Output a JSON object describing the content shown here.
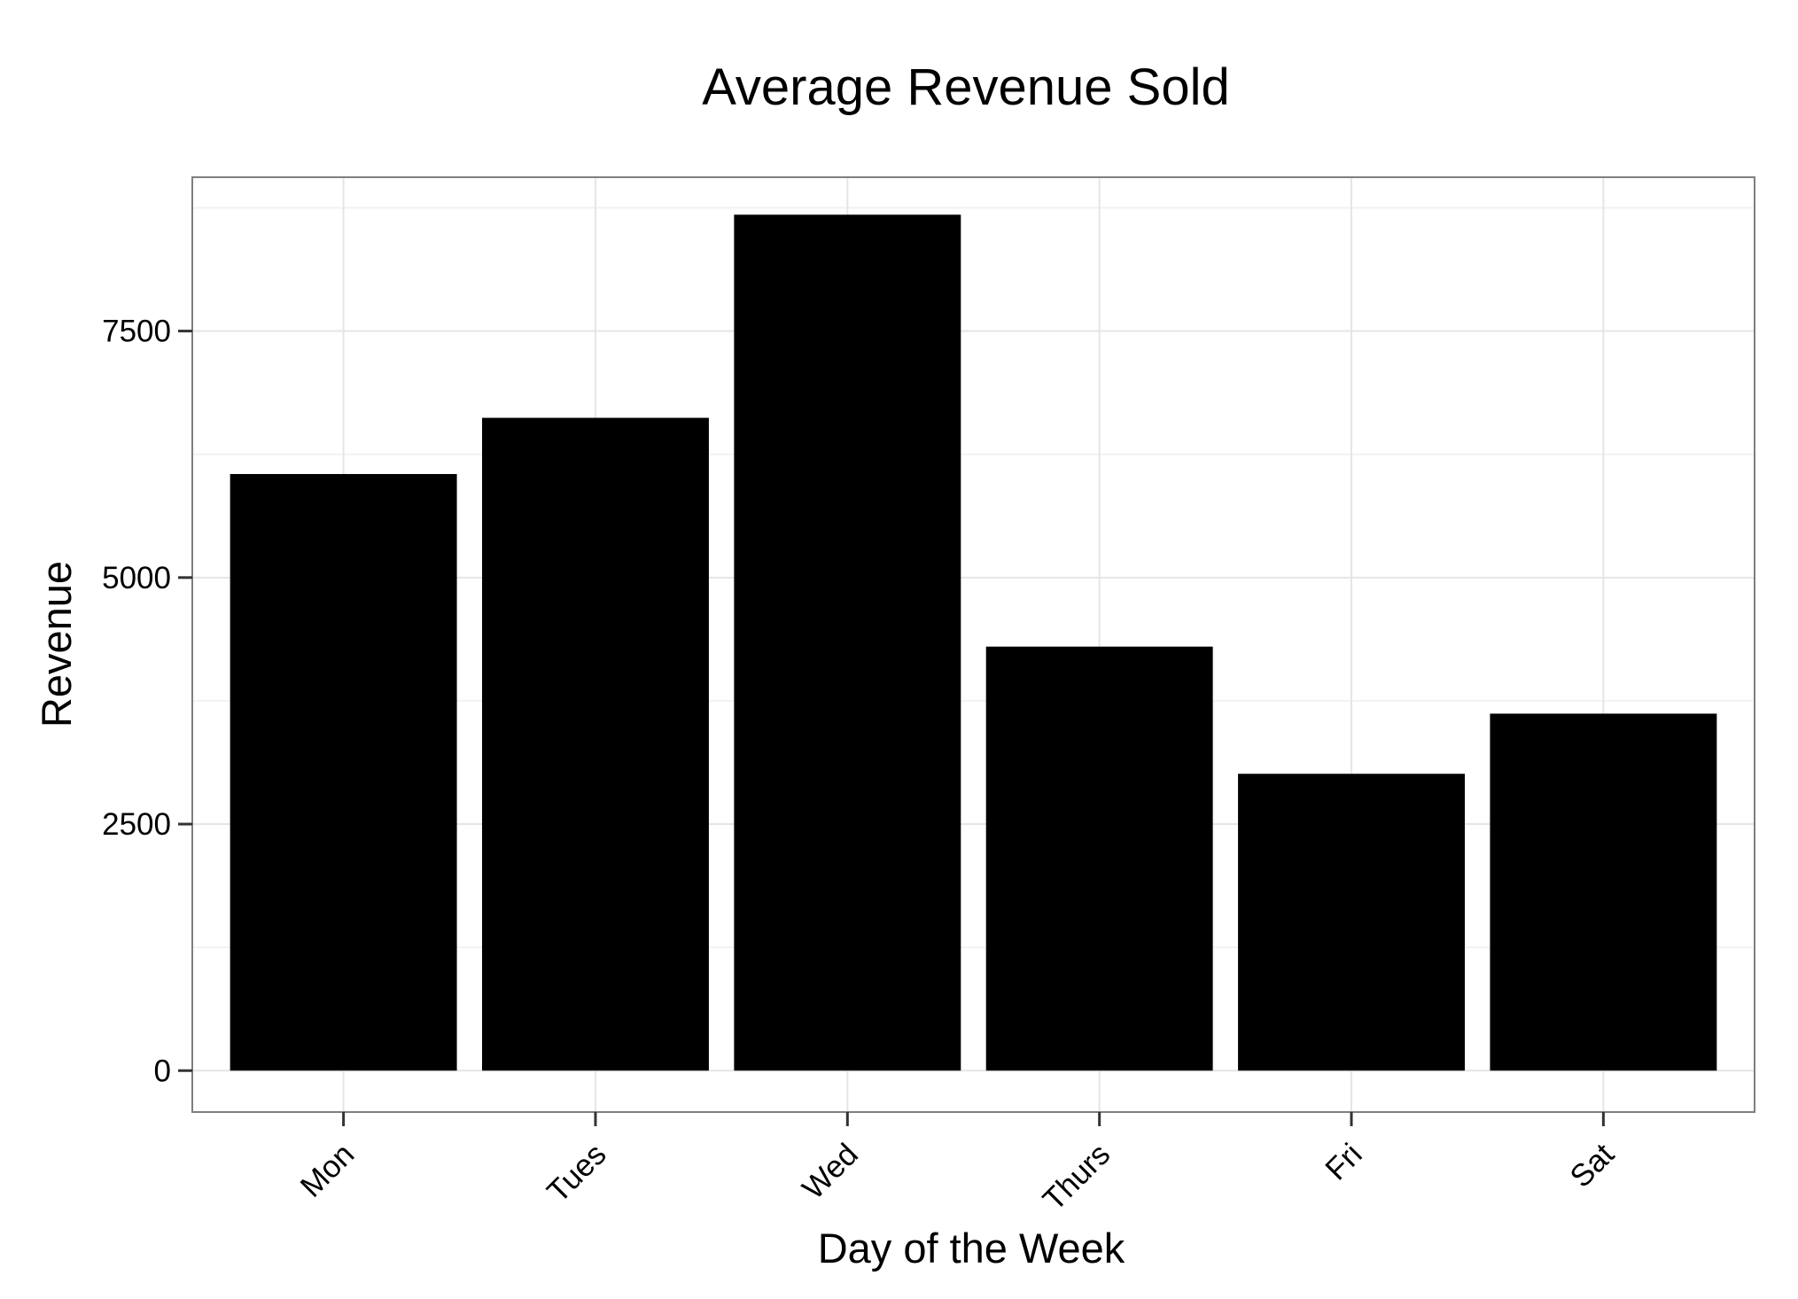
{
  "chart_data": {
    "type": "bar",
    "title": "Average Revenue Sold",
    "xlabel": "Day of the Week",
    "ylabel": "Revenue",
    "categories": [
      "Mon",
      "Tues",
      "Wed",
      "Thurs",
      "Fri",
      "Sat"
    ],
    "values": [
      6050,
      6620,
      8680,
      4300,
      3010,
      3620
    ],
    "ylim": [
      -420,
      9060
    ],
    "yticks": [
      0,
      2500,
      5000,
      7500
    ],
    "grid": true,
    "bar_color": "#000000",
    "panel_border_color": "#7f7f7f",
    "grid_color": "#e5e5e5",
    "background": "#ffffff"
  }
}
